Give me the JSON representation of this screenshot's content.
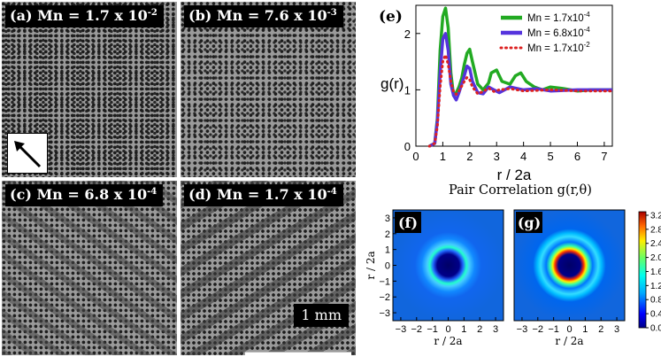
{
  "panels": {
    "a": {
      "tag": "(a)",
      "label": "Mn = 1.7 x 10",
      "exp": "-2"
    },
    "b": {
      "tag": "(b)",
      "label": "Mn = 7.6 x 10",
      "exp": "-3"
    },
    "c": {
      "tag": "(c)",
      "label": "Mn = 6.8 x 10",
      "exp": "-4"
    },
    "d": {
      "tag": "(d)",
      "label": "Mn = 1.7 x 10",
      "exp": "-4"
    },
    "scale_bar": "1 mm"
  },
  "chart_data": [
    {
      "type": "line",
      "panel_tag": "(e)",
      "ylabel": "g(r)",
      "xlabel": "r / 2a",
      "xlim": [
        0,
        7.3
      ],
      "ylim": [
        0,
        2.5
      ],
      "xticks": [
        0,
        1,
        2,
        3,
        4,
        5,
        6,
        7
      ],
      "yticks": [
        0,
        1,
        2
      ],
      "series": [
        {
          "name": "Mn = 1.7x10",
          "exp": "-4",
          "color": "#22aa22",
          "style": "solid",
          "x": [
            0.5,
            0.7,
            0.8,
            0.9,
            1.0,
            1.1,
            1.2,
            1.3,
            1.4,
            1.5,
            1.6,
            1.7,
            1.8,
            1.9,
            2.0,
            2.1,
            2.3,
            2.5,
            2.7,
            2.8,
            3.0,
            3.2,
            3.5,
            3.7,
            3.9,
            4.1,
            4.4,
            4.7,
            5.0,
            5.5,
            6.0,
            6.5,
            7.3
          ],
          "y": [
            0,
            0.05,
            0.5,
            1.7,
            2.3,
            2.45,
            2.1,
            1.3,
            0.9,
            0.95,
            1.05,
            1.2,
            1.45,
            1.65,
            1.72,
            1.5,
            1.1,
            1.0,
            1.12,
            1.3,
            1.35,
            1.15,
            1.1,
            1.25,
            1.3,
            1.15,
            1.05,
            1.0,
            1.05,
            1.02,
            0.98,
            1.0,
            1.0
          ]
        },
        {
          "name": "Mn = 6.8x10",
          "exp": "-4",
          "color": "#5533dd",
          "style": "solid",
          "x": [
            0.5,
            0.7,
            0.8,
            0.9,
            1.0,
            1.1,
            1.2,
            1.3,
            1.4,
            1.5,
            1.6,
            1.8,
            1.9,
            2.0,
            2.1,
            2.3,
            2.5,
            2.7,
            2.9,
            3.1,
            3.5,
            4.0,
            4.5,
            5.0,
            6.0,
            7.3
          ],
          "y": [
            0,
            0.05,
            0.45,
            1.3,
            1.9,
            2.0,
            1.7,
            1.1,
            0.9,
            0.82,
            0.95,
            1.25,
            1.42,
            1.38,
            1.15,
            0.95,
            0.93,
            1.05,
            1.0,
            0.95,
            1.05,
            1.0,
            1.02,
            0.98,
            1.0,
            1.0
          ]
        },
        {
          "name": "Mn = 1.7x10",
          "exp": "-2",
          "color": "#dd2222",
          "style": "dotted",
          "x": [
            0.5,
            0.7,
            0.8,
            0.9,
            1.0,
            1.1,
            1.2,
            1.3,
            1.4,
            1.5,
            1.6,
            1.8,
            1.9,
            2.0,
            2.1,
            2.3,
            2.5,
            2.7,
            2.9,
            3.1,
            3.5,
            4.0,
            5.0,
            6.0,
            7.3
          ],
          "y": [
            0,
            0.05,
            0.35,
            1.05,
            1.5,
            1.62,
            1.45,
            1.15,
            0.97,
            0.92,
            0.98,
            1.15,
            1.22,
            1.18,
            1.05,
            0.93,
            0.97,
            1.03,
            0.97,
            1.0,
            1.02,
            0.98,
            1.0,
            0.98,
            0.98
          ]
        }
      ]
    },
    {
      "type": "heatmap",
      "title": "Pair Correlation g(r,θ)",
      "panels": [
        "(f)",
        "(g)"
      ],
      "xlabel": "r / 2a",
      "ylabel": "r / 2a",
      "ticks": [
        "−3",
        "−2",
        "−1",
        "0",
        "1",
        "2",
        "3"
      ],
      "colorbar": {
        "min": 0,
        "max": 3.3,
        "ticks": [
          "3.2",
          "2.8",
          "2.4",
          "2.0",
          "1.6",
          "1.2",
          "0.8",
          "0.4",
          "0.0"
        ]
      }
    }
  ]
}
